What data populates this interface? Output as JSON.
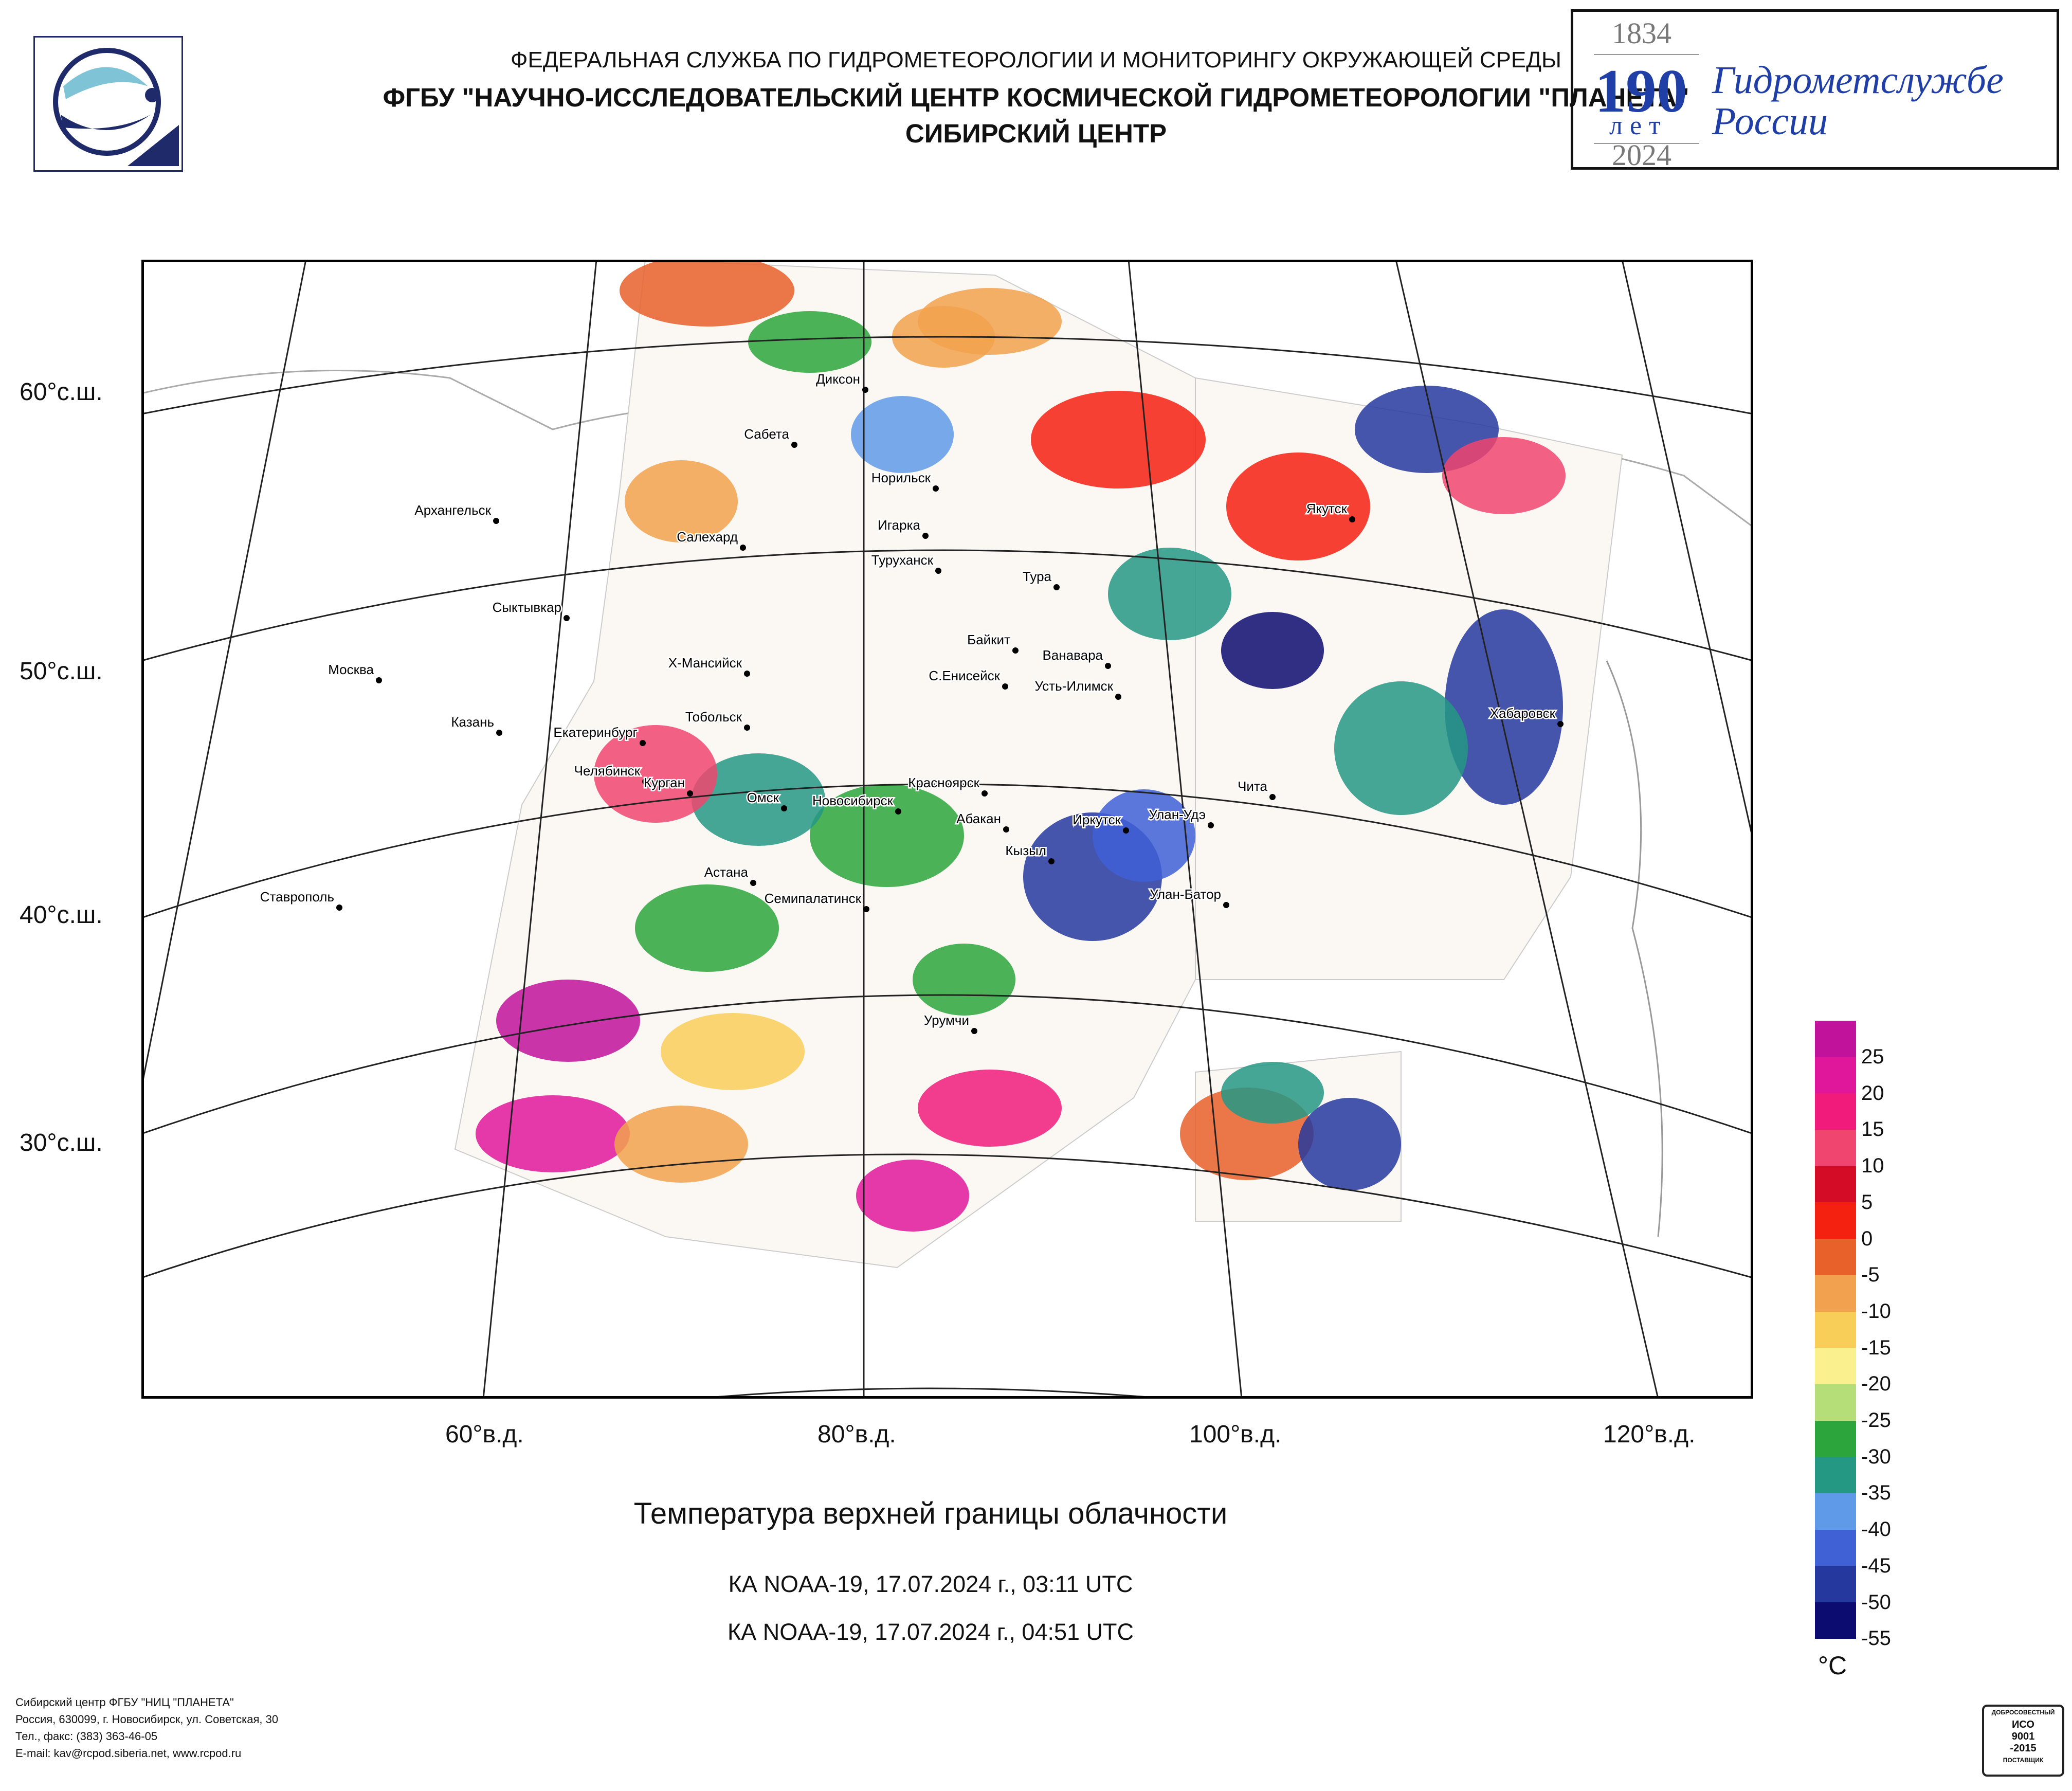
{
  "header": {
    "line1": "ФЕДЕРАЛЬНАЯ СЛУЖБА ПО ГИДРОМЕТЕОРОЛОГИИ И МОНИТОРИНГУ ОКРУЖАЮЩЕЙ СРЕДЫ",
    "line2": "ФГБУ \"НАУЧНО-ИССЛЕДОВАТЕЛЬСКИЙ ЦЕНТР КОСМИЧЕСКОЙ ГИДРОМЕТЕОРОЛОГИИ \"ПЛАНЕТА\"",
    "line3": "СИБИРСКИЙ ЦЕНТР"
  },
  "anniversary": {
    "year_start": "1834",
    "years": "190",
    "years_word": "лет",
    "year_end": "2024",
    "name_line1": "Гидрометслужбе",
    "name_line2": "России"
  },
  "axes": {
    "lat_labels": [
      "60°с.ш.",
      "50°с.ш.",
      "40°с.ш.",
      "30°с.ш."
    ],
    "lon_labels": [
      "60°в.д.",
      "80°в.д.",
      "100°в.д.",
      "120°в.д."
    ]
  },
  "cities": [
    "Диксон",
    "Сабета",
    "Норильск",
    "Игарка",
    "Туруханск",
    "Салехард",
    "Архангельск",
    "Сыктывкар",
    "Москва",
    "Казань",
    "Екатеринбург",
    "Челябинск",
    "Курган",
    "Тобольск",
    "Х-Мансийск",
    "Омск",
    "Новосибирск",
    "Астана",
    "Семипалатинск",
    "Красноярск",
    "Абакан",
    "Кызыл",
    "Байкит",
    "Ванавара",
    "С.Енисейск",
    "Усть-Илимск",
    "Тура",
    "Якутск",
    "Иркутск",
    "Улан-Удэ",
    "Чита",
    "Улан-Батор",
    "Хабаровск",
    "Ставрополь",
    "Урумчи"
  ],
  "titles": {
    "main": "Температура верхней границы облачности",
    "pass1": "КА NOAA-19, 17.07.2024 г., 03:11 UTC",
    "pass2": "КА NOAA-19, 17.07.2024 г., 04:51 UTC"
  },
  "legend": {
    "unit": "°C",
    "labels": [
      "25",
      "20",
      "15",
      "10",
      "5",
      "0",
      "-5",
      "-10",
      "-15",
      "-20",
      "-25",
      "-30",
      "-35",
      "-40",
      "-45",
      "-50",
      "-55"
    ],
    "colors": [
      "#c0129a",
      "#e0169b",
      "#f01b7a",
      "#f0456e",
      "#d40c26",
      "#f42010",
      "#e8602a",
      "#f2a24e",
      "#f8ce58",
      "#fbf08e",
      "#b5de78",
      "#2ca63c",
      "#259884",
      "#5e9ae8",
      "#4060d6",
      "#24389e",
      "#0c0c70"
    ]
  },
  "footer": {
    "line1": "Сибирский центр ФГБУ \"НИЦ \"ПЛАНЕТА\"",
    "line2": "Россия, 630099, г. Новосибирск, ул. Советская, 30",
    "line3": "Тел., факс: (383) 363-46-05",
    "line4": "E-mail: kav@rcpod.siberia.net, www.rcpod.ru"
  },
  "iso_badge": {
    "top": "ДОБРОСОВЕСТНЫЙ",
    "line1": "ИСО",
    "line2": "9001",
    "line3": "-2015",
    "bottom": "ПОСТАВЩИК"
  }
}
